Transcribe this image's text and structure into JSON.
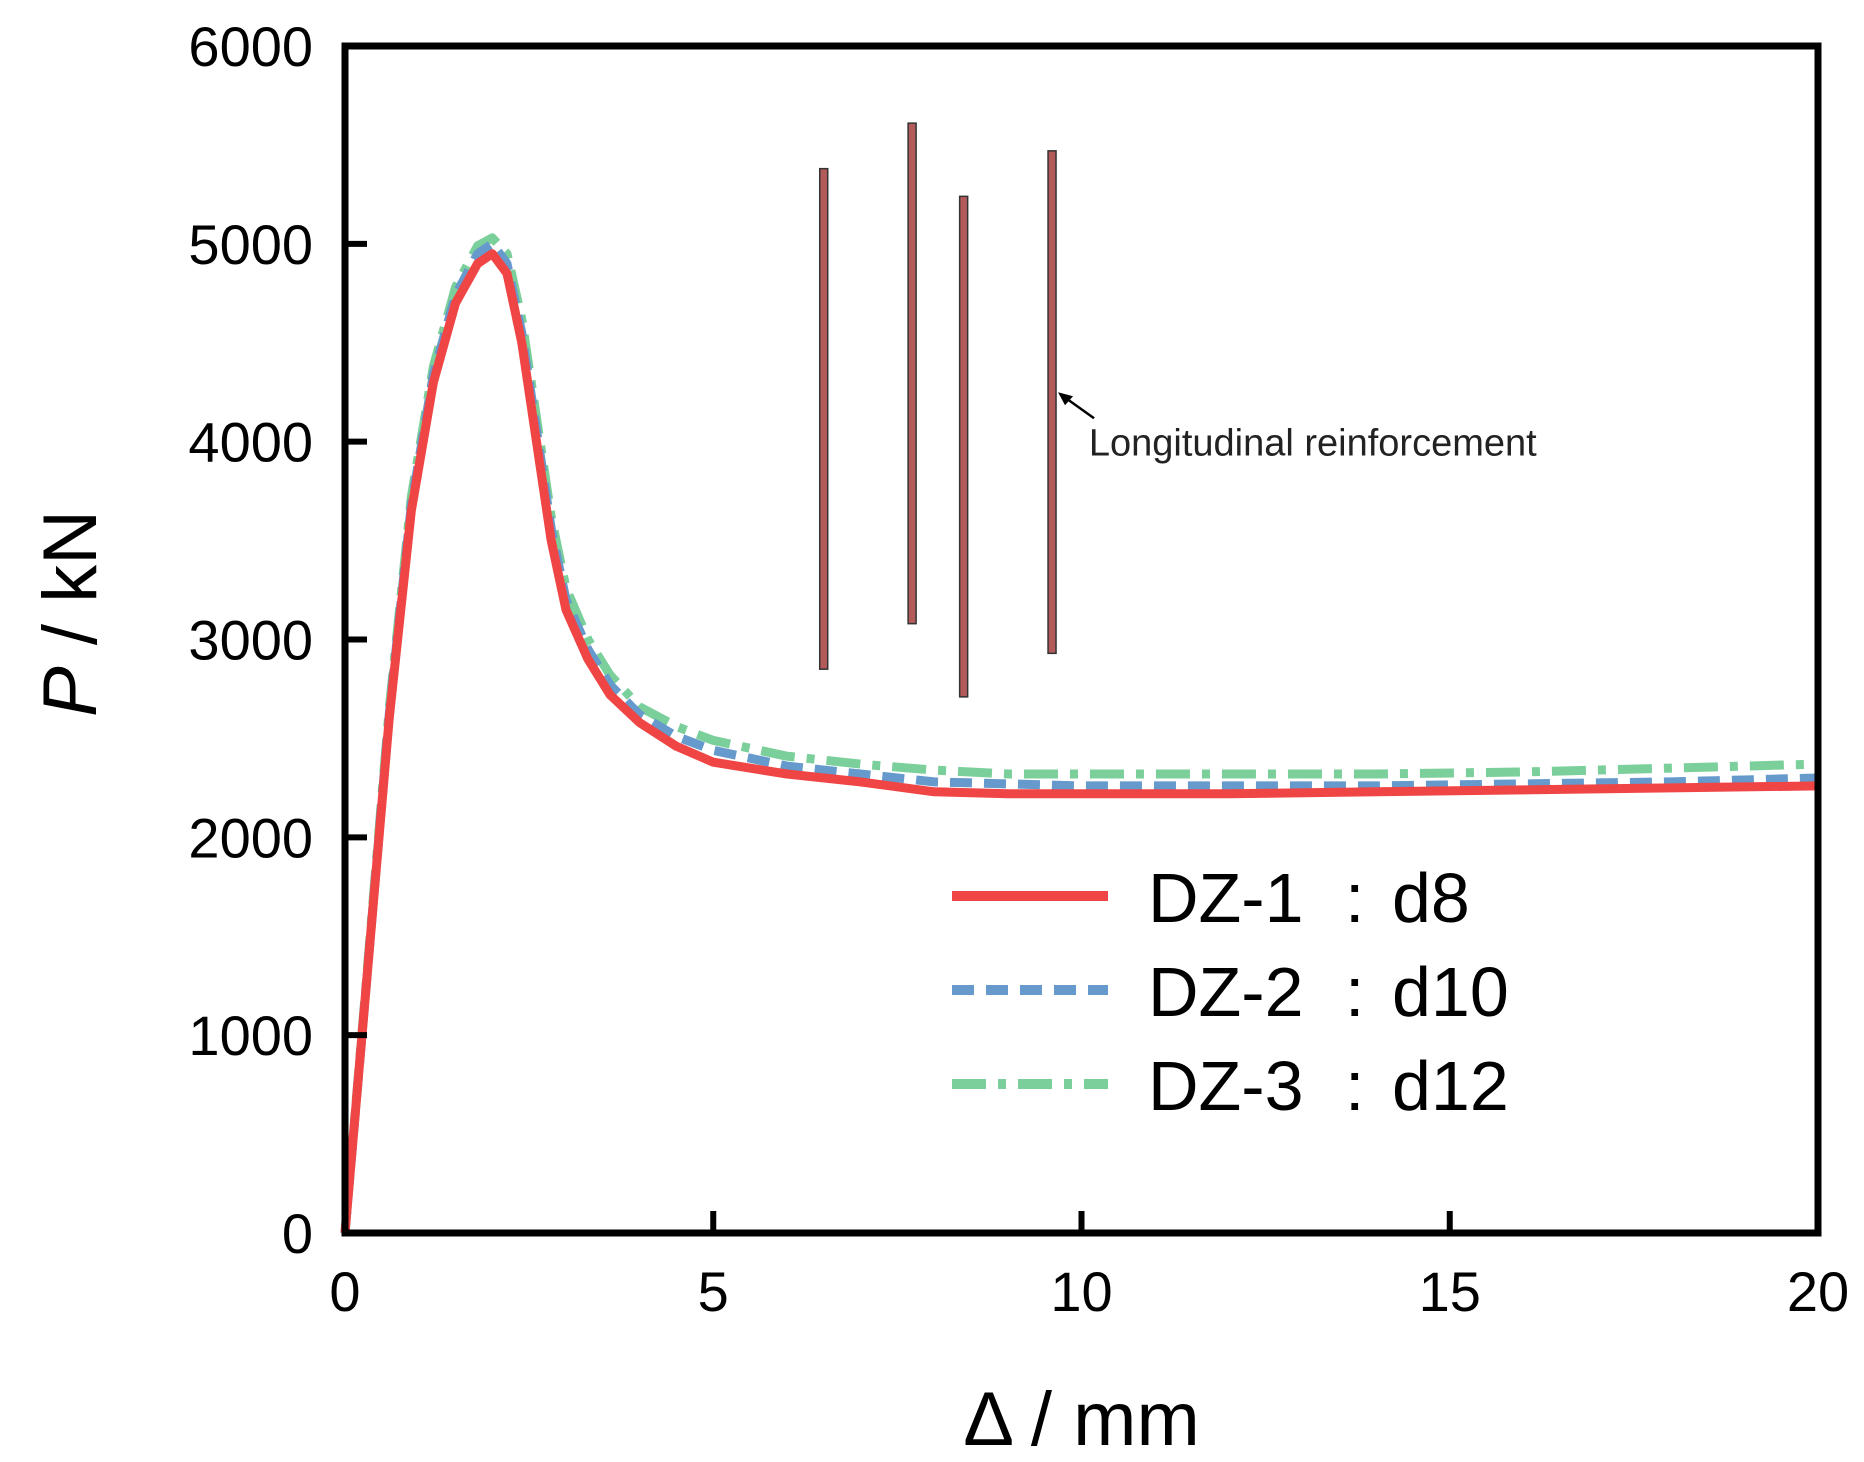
{
  "chart_data": {
    "type": "line",
    "title": "",
    "xlabel": "Δ / mm",
    "ylabel_italic": "P",
    "ylabel_rest": " / kN",
    "xlim": [
      0,
      20
    ],
    "ylim": [
      0,
      6000
    ],
    "xticks": [
      0,
      5,
      10,
      15,
      20
    ],
    "yticks": [
      0,
      1000,
      2000,
      3000,
      4000,
      5000,
      6000
    ],
    "grid": false,
    "legend_position": "lower-right",
    "colors": {
      "dz1": "#f04545",
      "dz2": "#6699cc",
      "dz3": "#7acf9a",
      "bar": "#b35a5a"
    },
    "series": [
      {
        "name": "DZ-1",
        "legend_suffix": "d8",
        "style": "solid",
        "x": [
          0,
          0.3,
          0.6,
          0.9,
          1.2,
          1.5,
          1.8,
          2.0,
          2.2,
          2.4,
          2.6,
          2.8,
          3.0,
          3.3,
          3.6,
          4.0,
          4.5,
          5.0,
          6.0,
          7.0,
          8.0,
          9.0,
          10,
          12,
          14,
          16,
          18,
          20
        ],
        "y": [
          0,
          1300,
          2600,
          3650,
          4300,
          4700,
          4900,
          4950,
          4850,
          4500,
          4000,
          3500,
          3150,
          2900,
          2720,
          2580,
          2460,
          2380,
          2320,
          2280,
          2230,
          2220,
          2220,
          2220,
          2230,
          2240,
          2250,
          2260
        ]
      },
      {
        "name": "DZ-2",
        "legend_suffix": "d10",
        "style": "dashed",
        "x": [
          0,
          0.3,
          0.6,
          0.9,
          1.2,
          1.5,
          1.8,
          2.0,
          2.2,
          2.4,
          2.6,
          2.8,
          3.0,
          3.3,
          3.6,
          4.0,
          4.5,
          5.0,
          6.0,
          7.0,
          8.0,
          9.0,
          10,
          12,
          14,
          16,
          18,
          20
        ],
        "y": [
          0,
          1300,
          2620,
          3680,
          4340,
          4740,
          4950,
          5000,
          4900,
          4550,
          4060,
          3560,
          3200,
          2950,
          2770,
          2620,
          2510,
          2440,
          2360,
          2320,
          2280,
          2270,
          2260,
          2260,
          2260,
          2270,
          2280,
          2300
        ]
      },
      {
        "name": "DZ-3",
        "legend_suffix": "d12",
        "style": "dashdot",
        "x": [
          0,
          0.3,
          0.6,
          0.9,
          1.2,
          1.5,
          1.8,
          2.0,
          2.2,
          2.4,
          2.6,
          2.8,
          3.0,
          3.3,
          3.6,
          4.0,
          4.5,
          5.0,
          6.0,
          7.0,
          8.0,
          9.0,
          10,
          12,
          14,
          16,
          18,
          20
        ],
        "y": [
          0,
          1320,
          2650,
          3720,
          4380,
          4780,
          4990,
          5030,
          4950,
          4620,
          4120,
          3620,
          3260,
          3000,
          2820,
          2660,
          2560,
          2490,
          2410,
          2370,
          2340,
          2320,
          2320,
          2320,
          2320,
          2330,
          2350,
          2370
        ]
      }
    ],
    "legend_separator": ":",
    "annotation": {
      "label": "Longitudinal reinforcement",
      "bars": [
        {
          "x": 6.5,
          "y_top": 5380,
          "y_bottom": 2850
        },
        {
          "x": 7.7,
          "y_top": 5610,
          "y_bottom": 3080
        },
        {
          "x": 8.4,
          "y_top": 5240,
          "y_bottom": 2710
        },
        {
          "x": 9.6,
          "y_top": 5470,
          "y_bottom": 2930
        }
      ]
    }
  }
}
